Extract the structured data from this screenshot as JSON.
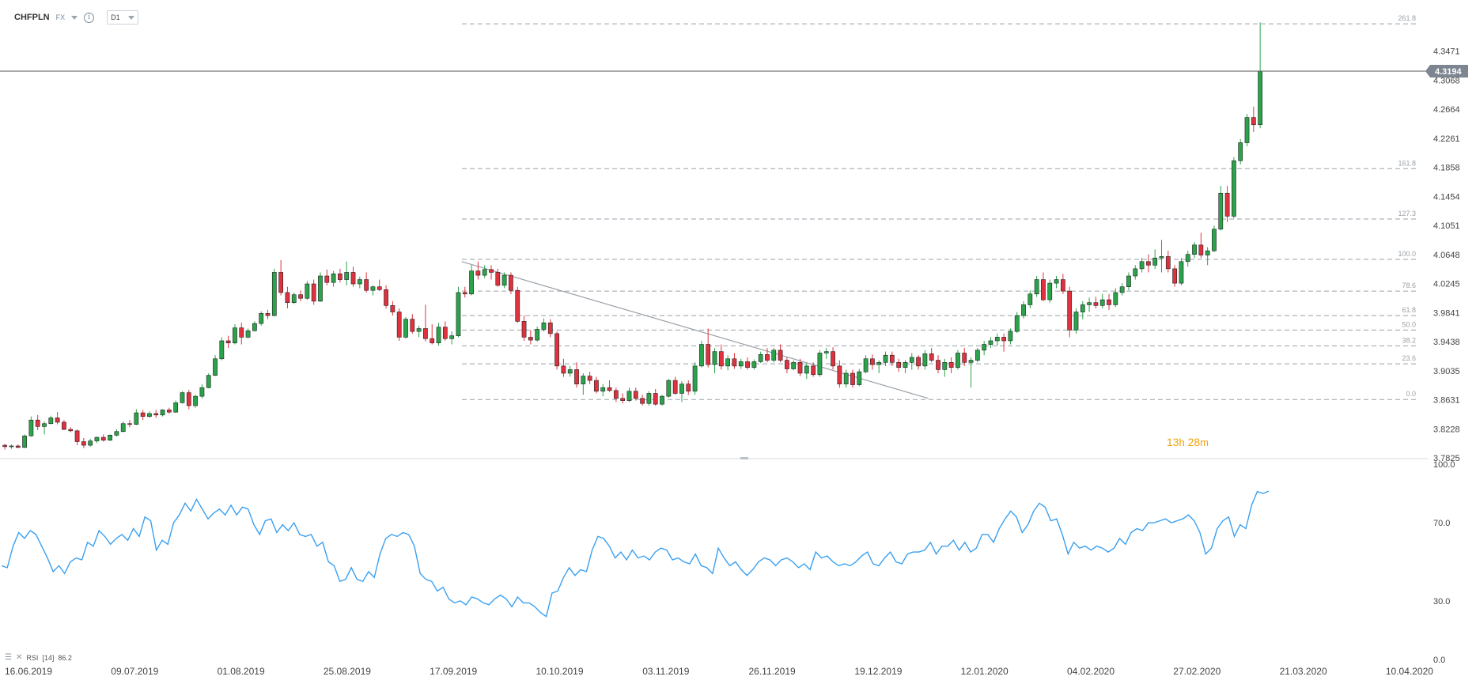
{
  "toolbar": {
    "symbol": "CHFPLN",
    "market": "FX",
    "timeframe": "D1",
    "caret_icon": "chevron-down-icon",
    "info_icon": "info-icon"
  },
  "countdown": {
    "hours": "13",
    "h_unit": "h",
    "minutes": "28",
    "m_unit": "m"
  },
  "rsi": {
    "label": "RSI",
    "period": "[14]",
    "value": "86.2",
    "axis_ticks": [
      {
        "label": "100.0",
        "value": 100
      },
      {
        "label": "70.0",
        "value": 70
      },
      {
        "label": "30.0",
        "value": 30
      },
      {
        "label": "0.0",
        "value": 0
      }
    ],
    "color": "#3aa0f0",
    "values": [
      48,
      47,
      58,
      65,
      62,
      66,
      64,
      58,
      52,
      45,
      48,
      44,
      50,
      52,
      51,
      60,
      58,
      66,
      63,
      59,
      62,
      64,
      61,
      67,
      63,
      73,
      71,
      56,
      61,
      59,
      70,
      74,
      80,
      76,
      82,
      77,
      72,
      75,
      77,
      74,
      79,
      74,
      78,
      77,
      69,
      64,
      71,
      72,
      65,
      69,
      66,
      70,
      64,
      63,
      64,
      58,
      60,
      50,
      48,
      40,
      41,
      47,
      41,
      40,
      45,
      42,
      54,
      62,
      64,
      63,
      65,
      64,
      58,
      44,
      41,
      40,
      35,
      37,
      31,
      29,
      30,
      28,
      32,
      31,
      29,
      28,
      31,
      33,
      31,
      27,
      32,
      29,
      29,
      27,
      24,
      22,
      34,
      35,
      42,
      47,
      43,
      46,
      45,
      56,
      63,
      62,
      58,
      52,
      55,
      51,
      56,
      52,
      53,
      51,
      55,
      57,
      56,
      51,
      52,
      50,
      49,
      54,
      48,
      47,
      44,
      57,
      52,
      48,
      50,
      46,
      43,
      46,
      50,
      52,
      51,
      48,
      51,
      52,
      50,
      47,
      49,
      46,
      55,
      52,
      53,
      50,
      48,
      49,
      48,
      50,
      53,
      55,
      49,
      48,
      52,
      55,
      50,
      49,
      54,
      55,
      55,
      56,
      60,
      54,
      58,
      58,
      61,
      56,
      60,
      55,
      57,
      64,
      64,
      60,
      67,
      72,
      76,
      73,
      65,
      69,
      76,
      80,
      78,
      71,
      72,
      64,
      54,
      60,
      57,
      58,
      56,
      58,
      57,
      55,
      57,
      62,
      59,
      65,
      67,
      66,
      70,
      70,
      71,
      72,
      70,
      71,
      72,
      74,
      71,
      65,
      54,
      57,
      67,
      71,
      73,
      63,
      69,
      67,
      79,
      86,
      85,
      86.2
    ],
    "xlim": [
      0,
      300
    ],
    "ylim": [
      0,
      100
    ]
  },
  "chart_data": {
    "type": "candlestick",
    "symbol": "CHFPLN",
    "timeframe": "D1",
    "current_price_label": "4.3194",
    "current_price": 4.3194,
    "ylim": [
      3.7825,
      4.3874
    ],
    "y_ticks": [
      "3.7825",
      "3.8228",
      "3.8631",
      "3.9035",
      "3.9438",
      "3.9841",
      "4.0245",
      "4.0648",
      "4.1051",
      "4.1454",
      "4.1858",
      "4.2261",
      "4.2664",
      "4.3068",
      "4.3471"
    ],
    "y_tick_values": [
      3.7825,
      3.8228,
      3.8631,
      3.9035,
      3.9438,
      3.9841,
      4.0245,
      4.0648,
      4.1051,
      4.1454,
      4.1858,
      4.2261,
      4.2664,
      4.3068,
      4.3471
    ],
    "x_ticks": [
      {
        "label": "16.06.2019",
        "index": 0
      },
      {
        "label": "09.07.2019",
        "index": 16
      },
      {
        "label": "01.08.2019",
        "index": 33
      },
      {
        "label": "25.08.2019",
        "index": 49
      },
      {
        "label": "17.09.2019",
        "index": 66
      },
      {
        "label": "10.10.2019",
        "index": 82
      },
      {
        "label": "03.11.2019",
        "index": 98
      },
      {
        "label": "26.11.2019",
        "index": 114
      },
      {
        "label": "19.12.2019",
        "index": 130
      },
      {
        "label": "12.01.2020",
        "index": 146
      },
      {
        "label": "04.02.2020",
        "index": 162
      },
      {
        "label": "27.02.2020",
        "index": 179
      },
      {
        "label": "21.03.2020",
        "index": 195
      },
      {
        "label": "10.04.2020",
        "index": 211
      }
    ],
    "xlim": [
      0,
      217
    ],
    "grid": false,
    "up_color": "#2aa34a",
    "down_color": "#e0313f",
    "fib_color": "#9aa1a8",
    "fibonacci": [
      {
        "label": "0.0",
        "value": 3.8635
      },
      {
        "label": "23.6",
        "value": 3.913
      },
      {
        "label": "38.2",
        "value": 3.938
      },
      {
        "label": "50.0",
        "value": 3.96
      },
      {
        "label": "61.8",
        "value": 3.98
      },
      {
        "label": "78.6",
        "value": 4.014
      },
      {
        "label": "100.0",
        "value": 4.058
      },
      {
        "label": "127.3",
        "value": 4.114
      },
      {
        "label": "161.8",
        "value": 4.184
      },
      {
        "label": "261.8",
        "value": 4.385
      }
    ],
    "trendline": [
      {
        "index": 70,
        "value": 4.055
      },
      {
        "index": 141,
        "value": 3.865
      }
    ],
    "candles": [
      [
        3.8,
        3.802,
        3.794,
        3.798
      ],
      [
        3.798,
        3.801,
        3.795,
        3.799
      ],
      [
        3.799,
        3.801,
        3.796,
        3.797
      ],
      [
        3.797,
        3.815,
        3.796,
        3.813
      ],
      [
        3.813,
        3.84,
        3.812,
        3.835
      ],
      [
        3.835,
        3.842,
        3.821,
        3.826
      ],
      [
        3.826,
        3.833,
        3.815,
        3.83
      ],
      [
        3.83,
        3.841,
        3.829,
        3.838
      ],
      [
        3.838,
        3.846,
        3.829,
        3.832
      ],
      [
        3.832,
        3.835,
        3.821,
        3.822
      ],
      [
        3.822,
        3.825,
        3.818,
        3.82
      ],
      [
        3.82,
        3.822,
        3.8,
        3.805
      ],
      [
        3.805,
        3.81,
        3.796,
        3.8
      ],
      [
        3.8,
        3.809,
        3.798,
        3.806
      ],
      [
        3.806,
        3.812,
        3.803,
        3.811
      ],
      [
        3.811,
        3.815,
        3.805,
        3.807
      ],
      [
        3.807,
        3.815,
        3.806,
        3.814
      ],
      [
        3.814,
        3.822,
        3.812,
        3.819
      ],
      [
        3.819,
        3.833,
        3.818,
        3.83
      ],
      [
        3.83,
        3.835,
        3.825,
        3.829
      ],
      [
        3.829,
        3.85,
        3.828,
        3.845
      ],
      [
        3.845,
        3.849,
        3.835,
        3.84
      ],
      [
        3.84,
        3.847,
        3.838,
        3.844
      ],
      [
        3.844,
        3.849,
        3.838,
        3.842
      ],
      [
        3.842,
        3.85,
        3.84,
        3.849
      ],
      [
        3.849,
        3.852,
        3.844,
        3.846
      ],
      [
        3.846,
        3.862,
        3.845,
        3.859
      ],
      [
        3.859,
        3.875,
        3.858,
        3.873
      ],
      [
        3.873,
        3.877,
        3.85,
        3.855
      ],
      [
        3.855,
        3.87,
        3.852,
        3.868
      ],
      [
        3.868,
        3.885,
        3.865,
        3.88
      ],
      [
        3.88,
        3.9,
        3.879,
        3.897
      ],
      [
        3.897,
        3.925,
        3.896,
        3.92
      ],
      [
        3.92,
        3.95,
        3.918,
        3.945
      ],
      [
        3.945,
        3.952,
        3.935,
        3.942
      ],
      [
        3.942,
        3.968,
        3.94,
        3.963
      ],
      [
        3.963,
        3.97,
        3.94,
        3.95
      ],
      [
        3.95,
        3.962,
        3.948,
        3.959
      ],
      [
        3.959,
        3.972,
        3.958,
        3.969
      ],
      [
        3.969,
        3.986,
        3.966,
        3.983
      ],
      [
        3.983,
        3.988,
        3.975,
        3.98
      ],
      [
        3.98,
        4.045,
        3.979,
        4.04
      ],
      [
        4.04,
        4.057,
        4.008,
        4.012
      ],
      [
        4.012,
        4.02,
        3.99,
        3.998
      ],
      [
        3.998,
        4.012,
        3.996,
        4.009
      ],
      [
        4.009,
        4.015,
        4.0,
        4.004
      ],
      [
        4.004,
        4.028,
        4.002,
        4.024
      ],
      [
        4.024,
        4.03,
        3.995,
        4.0
      ],
      [
        4.0,
        4.04,
        3.999,
        4.035
      ],
      [
        4.035,
        4.044,
        4.022,
        4.026
      ],
      [
        4.026,
        4.042,
        4.02,
        4.038
      ],
      [
        4.038,
        4.045,
        4.026,
        4.03
      ],
      [
        4.03,
        4.055,
        4.022,
        4.04
      ],
      [
        4.04,
        4.048,
        4.02,
        4.024
      ],
      [
        4.024,
        4.034,
        4.018,
        4.03
      ],
      [
        4.03,
        4.04,
        4.012,
        4.015
      ],
      [
        4.015,
        4.022,
        4.008,
        4.02
      ],
      [
        4.02,
        4.03,
        4.014,
        4.016
      ],
      [
        4.016,
        4.022,
        3.99,
        3.994
      ],
      [
        3.994,
        4.0,
        3.98,
        3.985
      ],
      [
        3.985,
        3.99,
        3.945,
        3.95
      ],
      [
        3.95,
        3.978,
        3.948,
        3.975
      ],
      [
        3.975,
        3.982,
        3.955,
        3.958
      ],
      [
        3.958,
        3.966,
        3.95,
        3.962
      ],
      [
        3.962,
        3.995,
        3.944,
        3.948
      ],
      [
        3.948,
        3.968,
        3.94,
        3.942
      ],
      [
        3.942,
        3.97,
        3.938,
        3.964
      ],
      [
        3.964,
        3.972,
        3.945,
        3.948
      ],
      [
        3.948,
        3.958,
        3.94,
        3.952
      ],
      [
        3.952,
        4.02,
        3.95,
        4.012
      ],
      [
        4.012,
        4.02,
        4.005,
        4.01
      ],
      [
        4.01,
        4.05,
        4.008,
        4.042
      ],
      [
        4.042,
        4.055,
        4.03,
        4.036
      ],
      [
        4.036,
        4.05,
        4.032,
        4.044
      ],
      [
        4.044,
        4.05,
        4.03,
        4.04
      ],
      [
        4.04,
        4.045,
        4.02,
        4.022
      ],
      [
        4.022,
        4.04,
        4.018,
        4.036
      ],
      [
        4.036,
        4.04,
        4.01,
        4.015
      ],
      [
        4.015,
        4.02,
        3.97,
        3.972
      ],
      [
        3.972,
        3.98,
        3.945,
        3.95
      ],
      [
        3.95,
        3.96,
        3.94,
        3.946
      ],
      [
        3.946,
        3.965,
        3.944,
        3.961
      ],
      [
        3.961,
        3.976,
        3.958,
        3.97
      ],
      [
        3.97,
        3.975,
        3.95,
        3.955
      ],
      [
        3.955,
        3.958,
        3.905,
        3.91
      ],
      [
        3.91,
        3.92,
        3.895,
        3.9
      ],
      [
        3.9,
        3.91,
        3.895,
        3.905
      ],
      [
        3.905,
        3.915,
        3.88,
        3.885
      ],
      [
        3.885,
        3.9,
        3.87,
        3.896
      ],
      [
        3.896,
        3.902,
        3.885,
        3.89
      ],
      [
        3.89,
        3.895,
        3.872,
        3.875
      ],
      [
        3.875,
        3.885,
        3.868,
        3.88
      ],
      [
        3.88,
        3.89,
        3.874,
        3.876
      ],
      [
        3.876,
        3.88,
        3.86,
        3.865
      ],
      [
        3.865,
        3.872,
        3.858,
        3.862
      ],
      [
        3.862,
        3.88,
        3.86,
        3.875
      ],
      [
        3.875,
        3.88,
        3.862,
        3.865
      ],
      [
        3.865,
        3.87,
        3.855,
        3.858
      ],
      [
        3.858,
        3.875,
        3.855,
        3.872
      ],
      [
        3.872,
        3.878,
        3.855,
        3.857
      ],
      [
        3.857,
        3.87,
        3.855,
        3.868
      ],
      [
        3.868,
        3.892,
        3.866,
        3.89
      ],
      [
        3.89,
        3.895,
        3.87,
        3.872
      ],
      [
        3.872,
        3.889,
        3.86,
        3.885
      ],
      [
        3.885,
        3.89,
        3.87,
        3.875
      ],
      [
        3.875,
        3.915,
        3.87,
        3.91
      ],
      [
        3.91,
        3.945,
        3.908,
        3.94
      ],
      [
        3.94,
        3.962,
        3.908,
        3.912
      ],
      [
        3.912,
        3.935,
        3.9,
        3.93
      ],
      [
        3.93,
        3.94,
        3.905,
        3.91
      ],
      [
        3.91,
        3.925,
        3.904,
        3.92
      ],
      [
        3.92,
        3.928,
        3.906,
        3.91
      ],
      [
        3.91,
        3.92,
        3.906,
        3.916
      ],
      [
        3.916,
        3.922,
        3.905,
        3.908
      ],
      [
        3.908,
        3.919,
        3.905,
        3.916
      ],
      [
        3.916,
        3.93,
        3.914,
        3.926
      ],
      [
        3.926,
        3.935,
        3.915,
        3.918
      ],
      [
        3.918,
        3.935,
        3.915,
        3.932
      ],
      [
        3.932,
        3.94,
        3.915,
        3.918
      ],
      [
        3.918,
        3.922,
        3.9,
        3.906
      ],
      [
        3.906,
        3.918,
        3.904,
        3.915
      ],
      [
        3.915,
        3.92,
        3.896,
        3.9
      ],
      [
        3.9,
        3.914,
        3.892,
        3.91
      ],
      [
        3.91,
        3.915,
        3.895,
        3.898
      ],
      [
        3.898,
        3.932,
        3.895,
        3.928
      ],
      [
        3.928,
        3.935,
        3.92,
        3.93
      ],
      [
        3.93,
        3.936,
        3.905,
        3.91
      ],
      [
        3.91,
        3.918,
        3.88,
        3.885
      ],
      [
        3.885,
        3.905,
        3.88,
        3.9
      ],
      [
        3.9,
        3.905,
        3.88,
        3.884
      ],
      [
        3.884,
        3.906,
        3.882,
        3.902
      ],
      [
        3.902,
        3.925,
        3.9,
        3.92
      ],
      [
        3.92,
        3.926,
        3.905,
        3.912
      ],
      [
        3.912,
        3.918,
        3.9,
        3.915
      ],
      [
        3.915,
        3.93,
        3.91,
        3.925
      ],
      [
        3.925,
        3.93,
        3.91,
        3.915
      ],
      [
        3.915,
        3.92,
        3.902,
        3.908
      ],
      [
        3.908,
        3.918,
        3.9,
        3.915
      ],
      [
        3.915,
        3.928,
        3.905,
        3.922
      ],
      [
        3.922,
        3.925,
        3.905,
        3.91
      ],
      [
        3.91,
        3.932,
        3.905,
        3.927
      ],
      [
        3.927,
        3.935,
        3.915,
        3.918
      ],
      [
        3.918,
        3.925,
        3.9,
        3.905
      ],
      [
        3.905,
        3.92,
        3.895,
        3.915
      ],
      [
        3.915,
        3.922,
        3.9,
        3.908
      ],
      [
        3.908,
        3.932,
        3.905,
        3.928
      ],
      [
        3.928,
        3.935,
        3.91,
        3.915
      ],
      [
        3.915,
        3.922,
        3.88,
        3.918
      ],
      [
        3.918,
        3.935,
        3.915,
        3.932
      ],
      [
        3.932,
        3.945,
        3.925,
        3.94
      ],
      [
        3.94,
        3.95,
        3.935,
        3.945
      ],
      [
        3.945,
        3.955,
        3.938,
        3.95
      ],
      [
        3.95,
        3.955,
        3.93,
        3.945
      ],
      [
        3.945,
        3.962,
        3.94,
        3.958
      ],
      [
        3.958,
        3.985,
        3.956,
        3.98
      ],
      [
        3.98,
        4.0,
        3.976,
        3.995
      ],
      [
        3.995,
        4.015,
        3.99,
        4.01
      ],
      [
        4.01,
        4.035,
        4.006,
        4.03
      ],
      [
        4.03,
        4.04,
        4.0,
        4.002
      ],
      [
        4.002,
        4.03,
        3.998,
        4.025
      ],
      [
        4.025,
        4.035,
        4.018,
        4.03
      ],
      [
        4.03,
        4.038,
        4.01,
        4.014
      ],
      [
        4.014,
        4.02,
        3.95,
        3.96
      ],
      [
        3.96,
        3.99,
        3.955,
        3.985
      ],
      [
        3.985,
        4.0,
        3.975,
        3.995
      ],
      [
        3.995,
        4.005,
        3.985,
        3.998
      ],
      [
        3.998,
        4.006,
        3.99,
        3.994
      ],
      [
        3.994,
        4.01,
        3.99,
        4.002
      ],
      [
        4.002,
        4.01,
        3.988,
        3.995
      ],
      [
        3.995,
        4.018,
        3.992,
        4.012
      ],
      [
        4.012,
        4.025,
        4.008,
        4.02
      ],
      [
        4.02,
        4.04,
        4.015,
        4.035
      ],
      [
        4.035,
        4.05,
        4.03,
        4.045
      ],
      [
        4.045,
        4.06,
        4.04,
        4.055
      ],
      [
        4.055,
        4.065,
        4.04,
        4.05
      ],
      [
        4.05,
        4.072,
        4.045,
        4.06
      ],
      [
        4.06,
        4.085,
        4.04,
        4.062
      ],
      [
        4.062,
        4.07,
        4.04,
        4.045
      ],
      [
        4.045,
        4.05,
        4.02,
        4.025
      ],
      [
        4.025,
        4.06,
        4.022,
        4.055
      ],
      [
        4.055,
        4.07,
        4.048,
        4.065
      ],
      [
        4.065,
        4.082,
        4.06,
        4.078
      ],
      [
        4.078,
        4.095,
        4.06,
        4.064
      ],
      [
        4.064,
        4.075,
        4.05,
        4.07
      ],
      [
        4.07,
        4.105,
        4.068,
        4.1
      ],
      [
        4.1,
        4.16,
        4.098,
        4.15
      ],
      [
        4.15,
        4.16,
        4.11,
        4.118
      ],
      [
        4.118,
        4.2,
        4.115,
        4.195
      ],
      [
        4.195,
        4.225,
        4.19,
        4.22
      ],
      [
        4.22,
        4.26,
        4.215,
        4.255
      ],
      [
        4.255,
        4.27,
        4.235,
        4.245
      ],
      [
        4.245,
        4.387,
        4.24,
        4.3194
      ]
    ]
  }
}
